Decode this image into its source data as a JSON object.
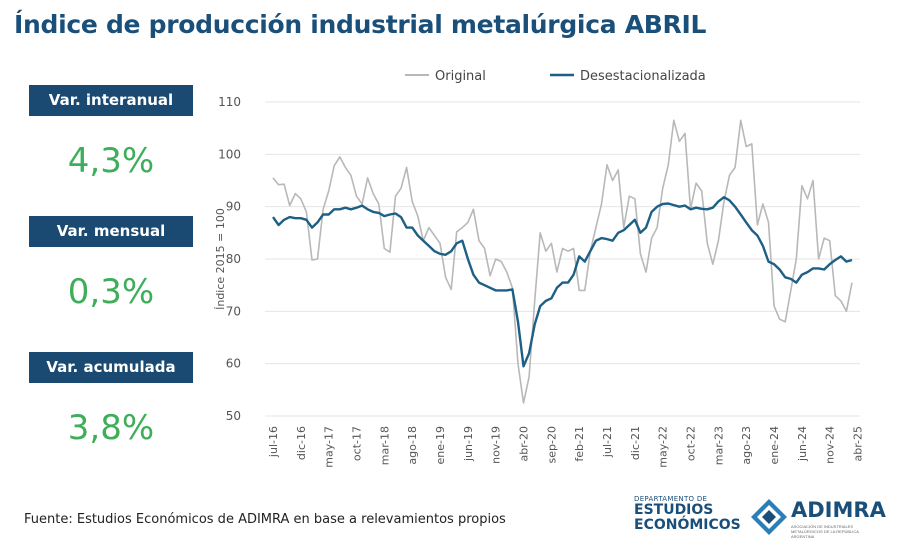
{
  "title": "Índice de producción industrial metalúrgica ABRIL",
  "kpis": [
    {
      "label": "Var. interanual",
      "value": "4,3%"
    },
    {
      "label": "Var. mensual",
      "value": "0,3%"
    },
    {
      "label": "Var. acumulada",
      "value": "3,8%"
    }
  ],
  "footer": "Fuente: Estudios Económicos de ADIMRA en base a relevamientos propios",
  "logos": {
    "ee_small": "DEPARTAMENTO DE",
    "ee_line1": "ESTUDIOS",
    "ee_line2": "ECONÓMICOS",
    "adimra": "ADIMRA",
    "adimra_sub": "ASOCIACIÓN DE INDUSTRIALES METALÚRGICOS DE LA REPÚBLICA ARGENTINA"
  },
  "colors": {
    "title": "#1a4f7a",
    "kpi_bg": "#1a4a72",
    "kpi_value": "#3fae5a",
    "original": "#b8b8b8",
    "desestacionalizada": "#1d5f85"
  },
  "chart_data": {
    "type": "line",
    "ylabel": "Índice 2015 = 100",
    "xlabel": "",
    "ylim": [
      50,
      110
    ],
    "yticks": [
      50,
      60,
      70,
      80,
      90,
      100,
      110
    ],
    "grid": true,
    "legend_position": "top",
    "x_start": "jul-16",
    "x_end": "abr-25",
    "x_tick_labels": [
      "jul-16",
      "dic-16",
      "may-17",
      "oct-17",
      "mar-18",
      "ago-18",
      "ene-19",
      "jun-19",
      "nov-19",
      "abr-20",
      "sep-20",
      "feb-21",
      "jul-21",
      "dic-21",
      "may-22",
      "oct-22",
      "mar-23",
      "ago-23",
      "ene-24",
      "jun-24",
      "nov-24",
      "abr-25"
    ],
    "series": [
      {
        "name": "Original",
        "color": "#b8b8b8",
        "values": [
          95.5,
          94.2,
          94.3,
          90.2,
          92.5,
          91.5,
          89.0,
          79.8,
          80.0,
          89.5,
          93.0,
          97.8,
          99.5,
          97.5,
          96.0,
          92.0,
          90.5,
          95.5,
          92.5,
          90.5,
          82.0,
          81.3,
          92.0,
          93.5,
          97.5,
          91.0,
          88.2,
          83.5,
          86.0,
          84.5,
          83.0,
          76.5,
          74.2,
          85.2,
          86.0,
          87.0,
          89.5,
          83.5,
          82.0,
          76.8,
          80.0,
          79.5,
          77.5,
          74.5,
          60.0,
          52.5,
          57.5,
          72.0,
          85.0,
          81.5,
          83.0,
          77.5,
          82.0,
          81.5,
          82.0,
          74.0,
          74.0,
          81.5,
          86.0,
          90.5,
          98.0,
          95.0,
          97.0,
          86.0,
          92.0,
          91.5,
          81.0,
          77.5,
          84.0,
          86.0,
          93.5,
          98.0,
          106.5,
          102.5,
          104.0,
          89.5,
          94.5,
          93.0,
          83.0,
          79.0,
          83.5,
          91.0,
          96.0,
          97.5,
          106.5,
          101.5,
          102.0,
          86.5,
          90.5,
          87.0,
          71.0,
          68.5,
          68.0,
          74.0,
          80.0,
          94.0,
          91.5,
          95.0,
          80.0,
          84.0,
          83.5,
          73.0,
          72.0,
          70.0,
          75.5
        ]
      },
      {
        "name": "Desestacionalizada",
        "color": "#1d5f85",
        "values": [
          88.0,
          86.5,
          87.5,
          88.0,
          87.8,
          87.8,
          87.5,
          86.0,
          87.0,
          88.5,
          88.5,
          89.5,
          89.5,
          89.8,
          89.5,
          89.8,
          90.2,
          89.5,
          89.0,
          88.8,
          88.2,
          88.5,
          88.7,
          88.0,
          86.0,
          86.0,
          84.5,
          83.5,
          82.5,
          81.5,
          81.0,
          80.8,
          81.5,
          83.0,
          83.5,
          80.0,
          77.0,
          75.5,
          75.0,
          74.5,
          74.0,
          74.0,
          74.0,
          74.2,
          68.0,
          59.5,
          62.0,
          67.5,
          71.0,
          72.0,
          72.5,
          74.5,
          75.5,
          75.5,
          77.0,
          80.5,
          79.5,
          81.5,
          83.5,
          84.0,
          83.8,
          83.5,
          85.0,
          85.5,
          86.5,
          87.5,
          85.0,
          86.0,
          89.0,
          90.0,
          90.5,
          90.6,
          90.3,
          90.0,
          90.2,
          89.5,
          89.8,
          89.6,
          89.5,
          89.8,
          91.0,
          91.8,
          91.2,
          90.0,
          88.5,
          87.0,
          85.5,
          84.5,
          82.5,
          79.5,
          79.0,
          78.0,
          76.5,
          76.2,
          75.5,
          77.0,
          77.5,
          78.2,
          78.2,
          78.0,
          79.0,
          79.8,
          80.5,
          79.5,
          79.8
        ]
      }
    ]
  }
}
